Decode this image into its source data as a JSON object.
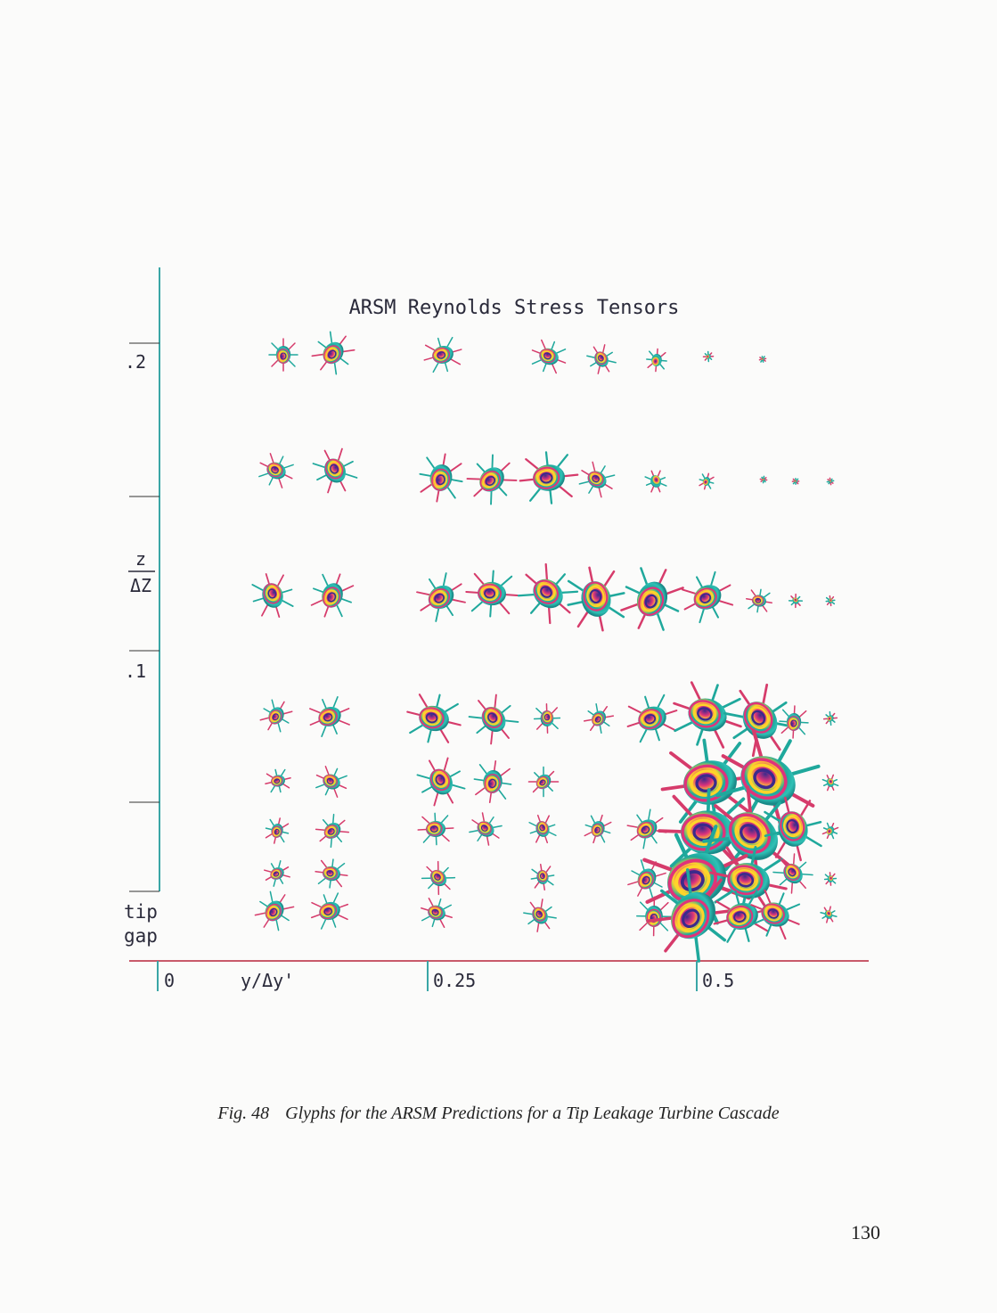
{
  "figure": {
    "title": "ARSM Reynolds Stress Tensors",
    "y_ticks": [
      ".2",
      ".1"
    ],
    "y_label_num": "z",
    "y_label_den": "ΔZ",
    "tip_label_1": "tip",
    "tip_label_2": "gap",
    "x_ticks": [
      "0",
      "0.25",
      "0.5"
    ],
    "x_label": "y/Δy'",
    "colors": {
      "axis_vertical": "#3aa6a6",
      "axis_horizontal": "#c85a6a",
      "glyph_band_1": "#e0337a",
      "glyph_band_2": "#ffd42a",
      "glyph_band_3": "#1fa89c",
      "glyph_band_4": "#3b2a8c",
      "glyph_spike": "#d63b6b"
    }
  },
  "caption": {
    "fig_number": "Fig. 48",
    "text": "Glyphs for the ARSM Predictions for a Tip Leakage Turbine Cascade"
  },
  "page_number": "130"
}
